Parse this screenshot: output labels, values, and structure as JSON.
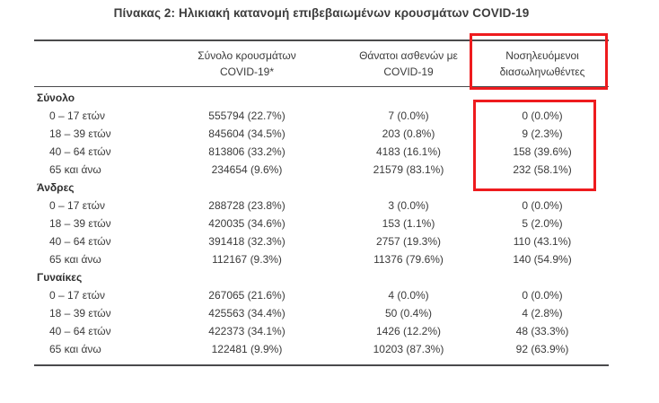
{
  "title": "Πίνακας 2: Ηλικιακή κατανομή επιβεβαιωμένων κρουσμάτων COVID-19",
  "highlight": {
    "color": "#ee1b1e"
  },
  "table": {
    "columns": [
      {
        "line1": "",
        "line2": ""
      },
      {
        "line1": "Σύνολο κρουσμάτων",
        "line2": "COVID-19*"
      },
      {
        "line1": "Θάνατοι ασθενών με",
        "line2": "COVID-19"
      },
      {
        "line1": "Νοσηλευόμενοι",
        "line2": "διασωληνωθέντες"
      }
    ],
    "sections": [
      {
        "header": "Σύνολο",
        "rows": [
          {
            "age": "0 – 17 ετών",
            "cases": "555794 (22.7%)",
            "deaths": "7 (0.0%)",
            "intubated": "0 (0.0%)"
          },
          {
            "age": "18 – 39 ετών",
            "cases": "845604 (34.5%)",
            "deaths": "203 (0.8%)",
            "intubated": "9 (2.3%)"
          },
          {
            "age": "40 – 64 ετών",
            "cases": "813806 (33.2%)",
            "deaths": "4183 (16.1%)",
            "intubated": "158 (39.6%)"
          },
          {
            "age": "65 και άνω",
            "cases": "234654 (9.6%)",
            "deaths": "21579 (83.1%)",
            "intubated": "232 (58.1%)"
          }
        ]
      },
      {
        "header": "Άνδρες",
        "rows": [
          {
            "age": "0 – 17 ετών",
            "cases": "288728 (23.8%)",
            "deaths": "3 (0.0%)",
            "intubated": "0 (0.0%)"
          },
          {
            "age": "18 – 39 ετών",
            "cases": "420035 (34.6%)",
            "deaths": "153 (1.1%)",
            "intubated": "5 (2.0%)"
          },
          {
            "age": "40 – 64 ετών",
            "cases": "391418 (32.3%)",
            "deaths": "2757 (19.3%)",
            "intubated": "110 (43.1%)"
          },
          {
            "age": "65 και άνω",
            "cases": "112167 (9.3%)",
            "deaths": "11376 (79.6%)",
            "intubated": "140 (54.9%)"
          }
        ]
      },
      {
        "header": "Γυναίκες",
        "rows": [
          {
            "age": "0 – 17 ετών",
            "cases": "267065 (21.6%)",
            "deaths": "4 (0.0%)",
            "intubated": "0 (0.0%)"
          },
          {
            "age": "18 – 39 ετών",
            "cases": "425563 (34.4%)",
            "deaths": "50 (0.4%)",
            "intubated": "4 (2.8%)"
          },
          {
            "age": "40 – 64 ετών",
            "cases": "422373 (34.1%)",
            "deaths": "1426 (12.2%)",
            "intubated": "48 (33.3%)"
          },
          {
            "age": "65 και άνω",
            "cases": "122481 (9.9%)",
            "deaths": "10203 (87.3%)",
            "intubated": "92 (63.9%)"
          }
        ]
      }
    ]
  }
}
